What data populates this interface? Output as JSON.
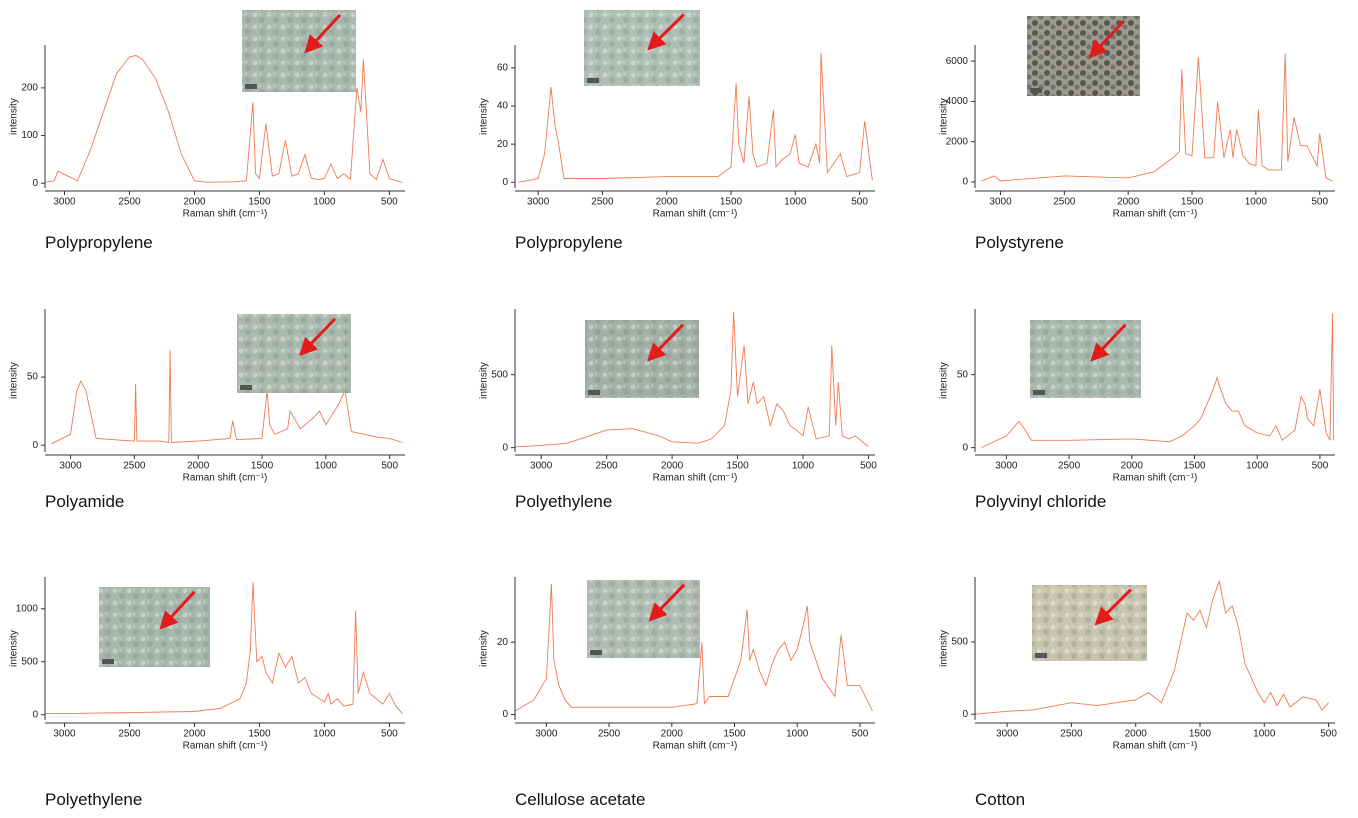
{
  "chart_data": [
    {
      "type": "line",
      "caption": "Polypropylene",
      "x_label": "Raman shift (cm⁻¹)",
      "y_label": "intensity",
      "color": "#f07a52",
      "xlim": [
        3150,
        380
      ],
      "ylim": [
        -10,
        290
      ],
      "xticks": [
        3000,
        2500,
        2000,
        1500,
        1000,
        500
      ],
      "yticks": [
        0,
        100,
        200
      ],
      "x": [
        3150,
        3080,
        3050,
        2900,
        2800,
        2700,
        2600,
        2500,
        2450,
        2400,
        2300,
        2200,
        2100,
        2000,
        1900,
        1700,
        1600,
        1550,
        1530,
        1500,
        1450,
        1400,
        1350,
        1300,
        1250,
        1200,
        1150,
        1100,
        1050,
        1000,
        950,
        900,
        850,
        800,
        750,
        720,
        700,
        650,
        600,
        550,
        500,
        450,
        400
      ],
      "values": [
        2,
        5,
        25,
        5,
        70,
        150,
        230,
        265,
        268,
        260,
        220,
        150,
        60,
        5,
        2,
        3,
        5,
        170,
        20,
        10,
        125,
        15,
        20,
        90,
        15,
        20,
        60,
        10,
        8,
        10,
        40,
        10,
        20,
        8,
        200,
        150,
        260,
        20,
        8,
        50,
        10,
        5,
        2
      ]
    },
    {
      "type": "line",
      "caption": "Polypropylene",
      "x_label": "Raman shift (cm⁻¹)",
      "y_label": "intensity",
      "color": "#f07a52",
      "xlim": [
        3180,
        380
      ],
      "ylim": [
        -3,
        72
      ],
      "xticks": [
        3000,
        2500,
        2000,
        1500,
        1000,
        500
      ],
      "yticks": [
        0,
        20,
        40,
        60
      ],
      "x": [
        3150,
        3000,
        2950,
        2900,
        2870,
        2840,
        2800,
        2500,
        2000,
        1600,
        1500,
        1460,
        1440,
        1400,
        1360,
        1330,
        1300,
        1220,
        1170,
        1150,
        1100,
        1040,
        1000,
        970,
        900,
        840,
        810,
        800,
        750,
        650,
        600,
        500,
        460,
        400
      ],
      "values": [
        0,
        2,
        15,
        50,
        30,
        20,
        2,
        2,
        3,
        3,
        8,
        52,
        20,
        10,
        45,
        15,
        8,
        10,
        38,
        8,
        12,
        15,
        25,
        10,
        8,
        20,
        10,
        68,
        5,
        15,
        3,
        5,
        32,
        1
      ]
    },
    {
      "type": "line",
      "caption": "Polystyrene",
      "x_label": "Raman shift (cm⁻¹)",
      "y_label": "intensity",
      "color": "#f07a52",
      "xlim": [
        3200,
        380
      ],
      "ylim": [
        -300,
        6800
      ],
      "xticks": [
        3000,
        2500,
        2000,
        1500,
        1000,
        500
      ],
      "yticks": [
        0,
        2000,
        4000,
        6000
      ],
      "x": [
        3150,
        3050,
        3000,
        2900,
        2500,
        2000,
        1800,
        1650,
        1600,
        1580,
        1550,
        1500,
        1450,
        1400,
        1330,
        1300,
        1250,
        1200,
        1180,
        1150,
        1100,
        1050,
        1000,
        980,
        950,
        900,
        800,
        770,
        750,
        700,
        650,
        600,
        520,
        500,
        450,
        400
      ],
      "values": [
        50,
        300,
        50,
        100,
        300,
        200,
        500,
        1200,
        1500,
        5600,
        1400,
        1300,
        6200,
        1200,
        1200,
        4000,
        1200,
        2600,
        1200,
        2600,
        1300,
        900,
        800,
        3600,
        800,
        600,
        600,
        6400,
        1000,
        3200,
        1800,
        1800,
        800,
        2400,
        200,
        50
      ]
    },
    {
      "type": "line",
      "caption": "Polyamide",
      "x_label": "Raman shift (cm⁻¹)",
      "y_label": "intensity",
      "color": "#f07a52",
      "xlim": [
        3200,
        380
      ],
      "ylim": [
        -5,
        100
      ],
      "xticks": [
        3000,
        2500,
        2000,
        1500,
        1000,
        500
      ],
      "yticks": [
        0,
        50
      ],
      "x": [
        3150,
        3000,
        2950,
        2920,
        2880,
        2800,
        2500,
        2490,
        2480,
        2300,
        2230,
        2220,
        2210,
        2000,
        1750,
        1730,
        1700,
        1500,
        1460,
        1440,
        1400,
        1300,
        1280,
        1200,
        1100,
        1050,
        1000,
        900,
        850,
        800,
        700,
        600,
        500,
        400
      ],
      "values": [
        1,
        8,
        40,
        47,
        40,
        5,
        3,
        45,
        3,
        3,
        2,
        70,
        2,
        3,
        5,
        18,
        4,
        5,
        40,
        15,
        8,
        12,
        25,
        12,
        20,
        25,
        15,
        30,
        40,
        10,
        8,
        6,
        5,
        2
      ]
    },
    {
      "type": "line",
      "caption": "Polyethylene",
      "x_label": "Raman shift (cm⁻¹)",
      "y_label": "intensity",
      "color": "#f07a52",
      "xlim": [
        3200,
        450
      ],
      "ylim": [
        -30,
        950
      ],
      "xticks": [
        3000,
        2500,
        2000,
        1500,
        1000,
        500
      ],
      "yticks": [
        0,
        500
      ],
      "x": [
        3200,
        3000,
        2800,
        2500,
        2300,
        2100,
        2000,
        1800,
        1700,
        1600,
        1550,
        1530,
        1500,
        1450,
        1420,
        1380,
        1350,
        1300,
        1250,
        1200,
        1150,
        1100,
        1050,
        1000,
        960,
        900,
        800,
        780,
        750,
        730,
        700,
        650,
        600,
        500
      ],
      "values": [
        5,
        15,
        30,
        120,
        130,
        80,
        40,
        30,
        60,
        150,
        400,
        930,
        350,
        700,
        300,
        450,
        300,
        350,
        150,
        300,
        250,
        150,
        120,
        80,
        280,
        60,
        80,
        700,
        150,
        450,
        80,
        60,
        80,
        5
      ]
    },
    {
      "type": "line",
      "caption": "Polyvinyl chloride",
      "x_label": "Raman shift (cm⁻¹)",
      "y_label": "intensity",
      "color": "#f07a52",
      "xlim": [
        3250,
        380
      ],
      "ylim": [
        -3,
        95
      ],
      "xticks": [
        3000,
        2500,
        2000,
        1500,
        1000,
        500
      ],
      "yticks": [
        0,
        50
      ],
      "x": [
        3200,
        3000,
        2900,
        2850,
        2800,
        2500,
        2000,
        1700,
        1600,
        1500,
        1450,
        1400,
        1350,
        1320,
        1300,
        1250,
        1200,
        1150,
        1100,
        1000,
        900,
        850,
        800,
        700,
        650,
        620,
        600,
        550,
        500,
        450,
        420,
        400,
        390
      ],
      "values": [
        0,
        8,
        18,
        12,
        5,
        5,
        6,
        4,
        8,
        15,
        20,
        30,
        40,
        48,
        42,
        30,
        25,
        25,
        15,
        10,
        8,
        15,
        5,
        12,
        35,
        30,
        20,
        15,
        40,
        10,
        5,
        92,
        5
      ]
    },
    {
      "type": "line",
      "caption": "Polyethylene",
      "x_label": "Raman shift (cm⁻¹)",
      "y_label": "intensity",
      "color": "#f07a52",
      "xlim": [
        3150,
        380
      ],
      "ylim": [
        -50,
        1300
      ],
      "xticks": [
        3000,
        2500,
        2000,
        1500,
        1000,
        500
      ],
      "yticks": [
        0,
        500,
        1000
      ],
      "x": [
        3150,
        3000,
        2500,
        2000,
        1800,
        1650,
        1600,
        1570,
        1550,
        1520,
        1480,
        1450,
        1400,
        1350,
        1300,
        1250,
        1200,
        1150,
        1100,
        1000,
        970,
        950,
        900,
        850,
        780,
        760,
        740,
        700,
        650,
        550,
        500,
        450,
        400
      ],
      "values": [
        10,
        10,
        20,
        30,
        60,
        150,
        300,
        600,
        1250,
        500,
        550,
        400,
        300,
        580,
        450,
        550,
        300,
        350,
        200,
        120,
        200,
        100,
        150,
        80,
        100,
        980,
        200,
        400,
        200,
        100,
        200,
        80,
        10
      ]
    },
    {
      "type": "line",
      "caption": "Cellulose acetate",
      "x_label": "Raman shift (cm⁻¹)",
      "y_label": "intensity",
      "color": "#f07a52",
      "xlim": [
        3250,
        380
      ],
      "ylim": [
        -1.5,
        38
      ],
      "xticks": [
        3000,
        2500,
        2000,
        1500,
        1000,
        500
      ],
      "yticks": [
        0,
        20
      ],
      "x": [
        3250,
        3100,
        3000,
        2960,
        2940,
        2900,
        2850,
        2800,
        2500,
        2000,
        1800,
        1760,
        1740,
        1700,
        1550,
        1500,
        1450,
        1400,
        1380,
        1350,
        1300,
        1250,
        1200,
        1150,
        1100,
        1050,
        1000,
        950,
        920,
        900,
        850,
        800,
        700,
        650,
        600,
        500,
        400
      ],
      "values": [
        1,
        4,
        10,
        36,
        15,
        8,
        4,
        2,
        2,
        2,
        3,
        20,
        3,
        5,
        5,
        10,
        15,
        29,
        15,
        18,
        12,
        8,
        14,
        18,
        20,
        15,
        18,
        25,
        30,
        20,
        15,
        10,
        5,
        22,
        8,
        8,
        1
      ]
    },
    {
      "type": "line",
      "caption": "Cotton",
      "x_label": "Raman shift (cm⁻¹)",
      "y_label": "intensity",
      "color": "#f07a52",
      "xlim": [
        3250,
        450
      ],
      "ylim": [
        -40,
        950
      ],
      "xticks": [
        3000,
        2500,
        2000,
        1500,
        1000,
        500
      ],
      "yticks": [
        0,
        500
      ],
      "x": [
        3250,
        3000,
        2800,
        2500,
        2300,
        2000,
        1900,
        1800,
        1700,
        1600,
        1550,
        1500,
        1450,
        1400,
        1350,
        1300,
        1250,
        1200,
        1150,
        1100,
        1050,
        1000,
        950,
        900,
        850,
        800,
        700,
        600,
        550,
        500
      ],
      "values": [
        0,
        20,
        30,
        80,
        60,
        100,
        150,
        80,
        300,
        700,
        650,
        720,
        600,
        800,
        920,
        700,
        750,
        600,
        350,
        250,
        150,
        80,
        150,
        60,
        140,
        50,
        120,
        100,
        30,
        80
      ]
    }
  ]
}
